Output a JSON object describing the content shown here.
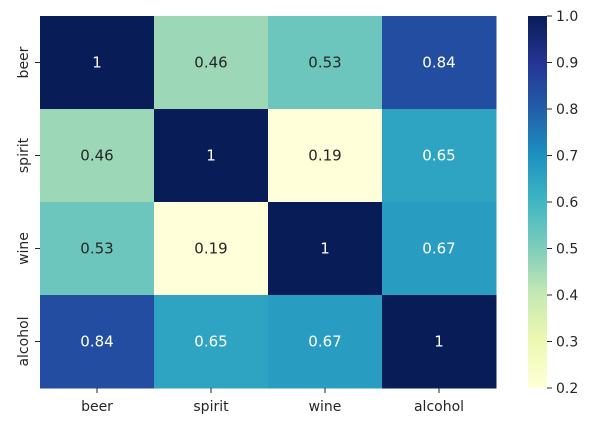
{
  "chart_data": {
    "type": "heatmap",
    "title": "",
    "xlabel": "",
    "ylabel": "",
    "x_categories": [
      "beer",
      "spirit",
      "wine",
      "alcohol"
    ],
    "y_categories": [
      "beer",
      "spirit",
      "wine",
      "alcohol"
    ],
    "values": [
      [
        1,
        0.46,
        0.53,
        0.84
      ],
      [
        0.46,
        1,
        0.19,
        0.65
      ],
      [
        0.53,
        0.19,
        1,
        0.67
      ],
      [
        0.84,
        0.65,
        0.67,
        1
      ]
    ],
    "annotations": [
      [
        "1",
        "0.46",
        "0.53",
        "0.84"
      ],
      [
        "0.46",
        "1",
        "0.19",
        "0.65"
      ],
      [
        "0.53",
        "0.19",
        "1",
        "0.67"
      ],
      [
        "0.84",
        "0.65",
        "0.67",
        "1"
      ]
    ],
    "colormap": "YlGnBu",
    "vmin": 0.2,
    "vmax": 1.0,
    "colorbar_ticks": [
      "0.2",
      "0.3",
      "0.4",
      "0.5",
      "0.6",
      "0.7",
      "0.8",
      "0.9",
      "1.0"
    ],
    "grid": false,
    "legend": "colorbar-right"
  }
}
